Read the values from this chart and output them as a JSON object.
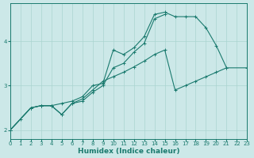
{
  "title": "",
  "xlabel": "Humidex (Indice chaleur)",
  "background_color": "#cce8e8",
  "line_color": "#1a7a6e",
  "grid_color": "#aad4d0",
  "xmin": 0,
  "xmax": 23,
  "ymin": 1.8,
  "ymax": 4.85,
  "line1_x": [
    0,
    1,
    2,
    3,
    4,
    5,
    6,
    7,
    8,
    9,
    10,
    11,
    12,
    13,
    14,
    15,
    16,
    17,
    18,
    19,
    20,
    21
  ],
  "line1_y": [
    2.0,
    2.25,
    2.5,
    2.55,
    2.55,
    2.6,
    2.65,
    2.75,
    3.0,
    3.05,
    3.8,
    3.7,
    3.85,
    4.1,
    4.6,
    4.65,
    4.55,
    4.55,
    4.55,
    4.3,
    3.9,
    3.4
  ],
  "line2_x": [
    0,
    2,
    3,
    4,
    5,
    6,
    7,
    8,
    9,
    10,
    11,
    12,
    13,
    14,
    15
  ],
  "line2_y": [
    2.0,
    2.5,
    2.55,
    2.55,
    2.35,
    2.6,
    2.65,
    2.85,
    3.0,
    3.4,
    3.5,
    3.75,
    3.95,
    4.5,
    4.6
  ],
  "line3_x": [
    0,
    2,
    3,
    4,
    5,
    6,
    7,
    8,
    9,
    10,
    11,
    12,
    13,
    14,
    15,
    16,
    17,
    18,
    19,
    20,
    21,
    23
  ],
  "line3_y": [
    2.0,
    2.5,
    2.55,
    2.55,
    2.35,
    2.6,
    2.7,
    2.9,
    3.1,
    3.2,
    3.3,
    3.42,
    3.55,
    3.7,
    3.8,
    2.9,
    3.0,
    3.1,
    3.2,
    3.3,
    3.4,
    3.4
  ],
  "yticks": [
    2,
    3,
    4
  ],
  "xticks": [
    0,
    1,
    2,
    3,
    4,
    5,
    6,
    7,
    8,
    9,
    10,
    11,
    12,
    13,
    14,
    15,
    16,
    17,
    18,
    19,
    20,
    21,
    22,
    23
  ],
  "axis_fontsize": 5.5,
  "tick_fontsize": 5.0,
  "xlabel_fontsize": 6.5
}
